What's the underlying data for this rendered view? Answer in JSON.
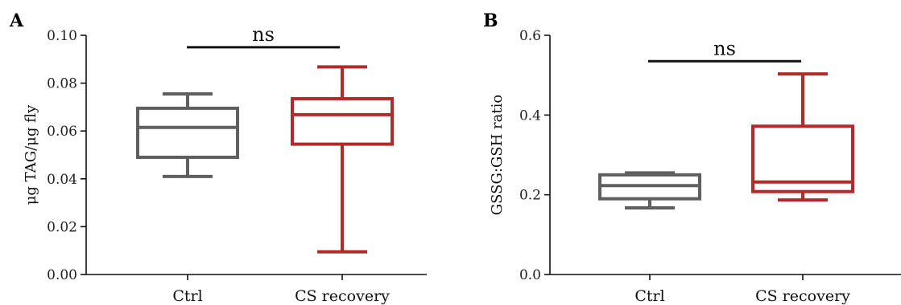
{
  "colors": {
    "ctrl": "#5f5f5f",
    "cs": "#b22a2a",
    "axis": "#111111"
  },
  "chart_data": [
    {
      "type": "box",
      "title": "A",
      "ylabel": "μg TAG/μg fly",
      "xlabel": "",
      "ylim": [
        0,
        0.1
      ],
      "yticks": [
        "0.00",
        "0.02",
        "0.04",
        "0.06",
        "0.08",
        "0.10"
      ],
      "ytick_values": [
        0,
        0.02,
        0.04,
        0.06,
        0.08,
        0.1
      ],
      "categories": [
        "Ctrl",
        "CS recovery"
      ],
      "series": [
        {
          "min": 0.041,
          "q1": 0.049,
          "median": 0.0615,
          "q3": 0.0695,
          "max": 0.0755
        },
        {
          "min": 0.0095,
          "q1": 0.0545,
          "median": 0.0668,
          "q3": 0.0735,
          "max": 0.0868
        }
      ],
      "significance": {
        "label": "ns",
        "y": 0.095
      }
    },
    {
      "type": "box",
      "title": "B",
      "ylabel": "GSSG:GSH ratio",
      "xlabel": "",
      "ylim": [
        0,
        0.6
      ],
      "yticks": [
        "0.0",
        "0.2",
        "0.4",
        "0.6"
      ],
      "ytick_values": [
        0,
        0.2,
        0.4,
        0.6
      ],
      "categories": [
        "Ctrl",
        "CS recovery"
      ],
      "series": [
        {
          "min": 0.167,
          "q1": 0.19,
          "median": 0.223,
          "q3": 0.25,
          "max": 0.255
        },
        {
          "min": 0.187,
          "q1": 0.208,
          "median": 0.232,
          "q3": 0.372,
          "max": 0.503
        }
      ],
      "significance": {
        "label": "ns",
        "y": 0.535
      }
    }
  ]
}
